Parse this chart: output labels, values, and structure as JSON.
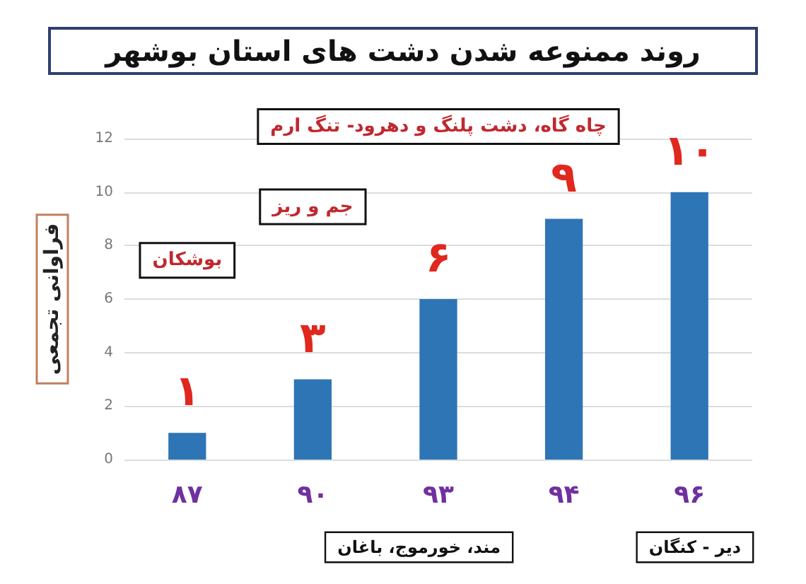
{
  "chart_data": {
    "type": "bar",
    "title": "روند ممنوعه شدن دشت های استان بوشهر",
    "ylabel": "فراوانی تجمعی",
    "categories": [
      "۸۷",
      "۹۰",
      "۹۳",
      "۹۴",
      "۹۶"
    ],
    "values": [
      1,
      3,
      6,
      9,
      10
    ],
    "color": "#2e75b6",
    "value_labels": [
      "۱",
      "۳",
      "۶",
      "۹",
      "۱۰"
    ],
    "ylim": [
      0,
      12
    ],
    "yticks": [
      0,
      2,
      4,
      6,
      8,
      10,
      12
    ],
    "grid": "y",
    "annotations": [
      "بوشکان",
      "جم و ریز",
      "چاه گاه، دشت پلنگ و دهرود- تنگ ارم",
      "مند، خورموج، باغان",
      "دیر - کنگان"
    ]
  }
}
